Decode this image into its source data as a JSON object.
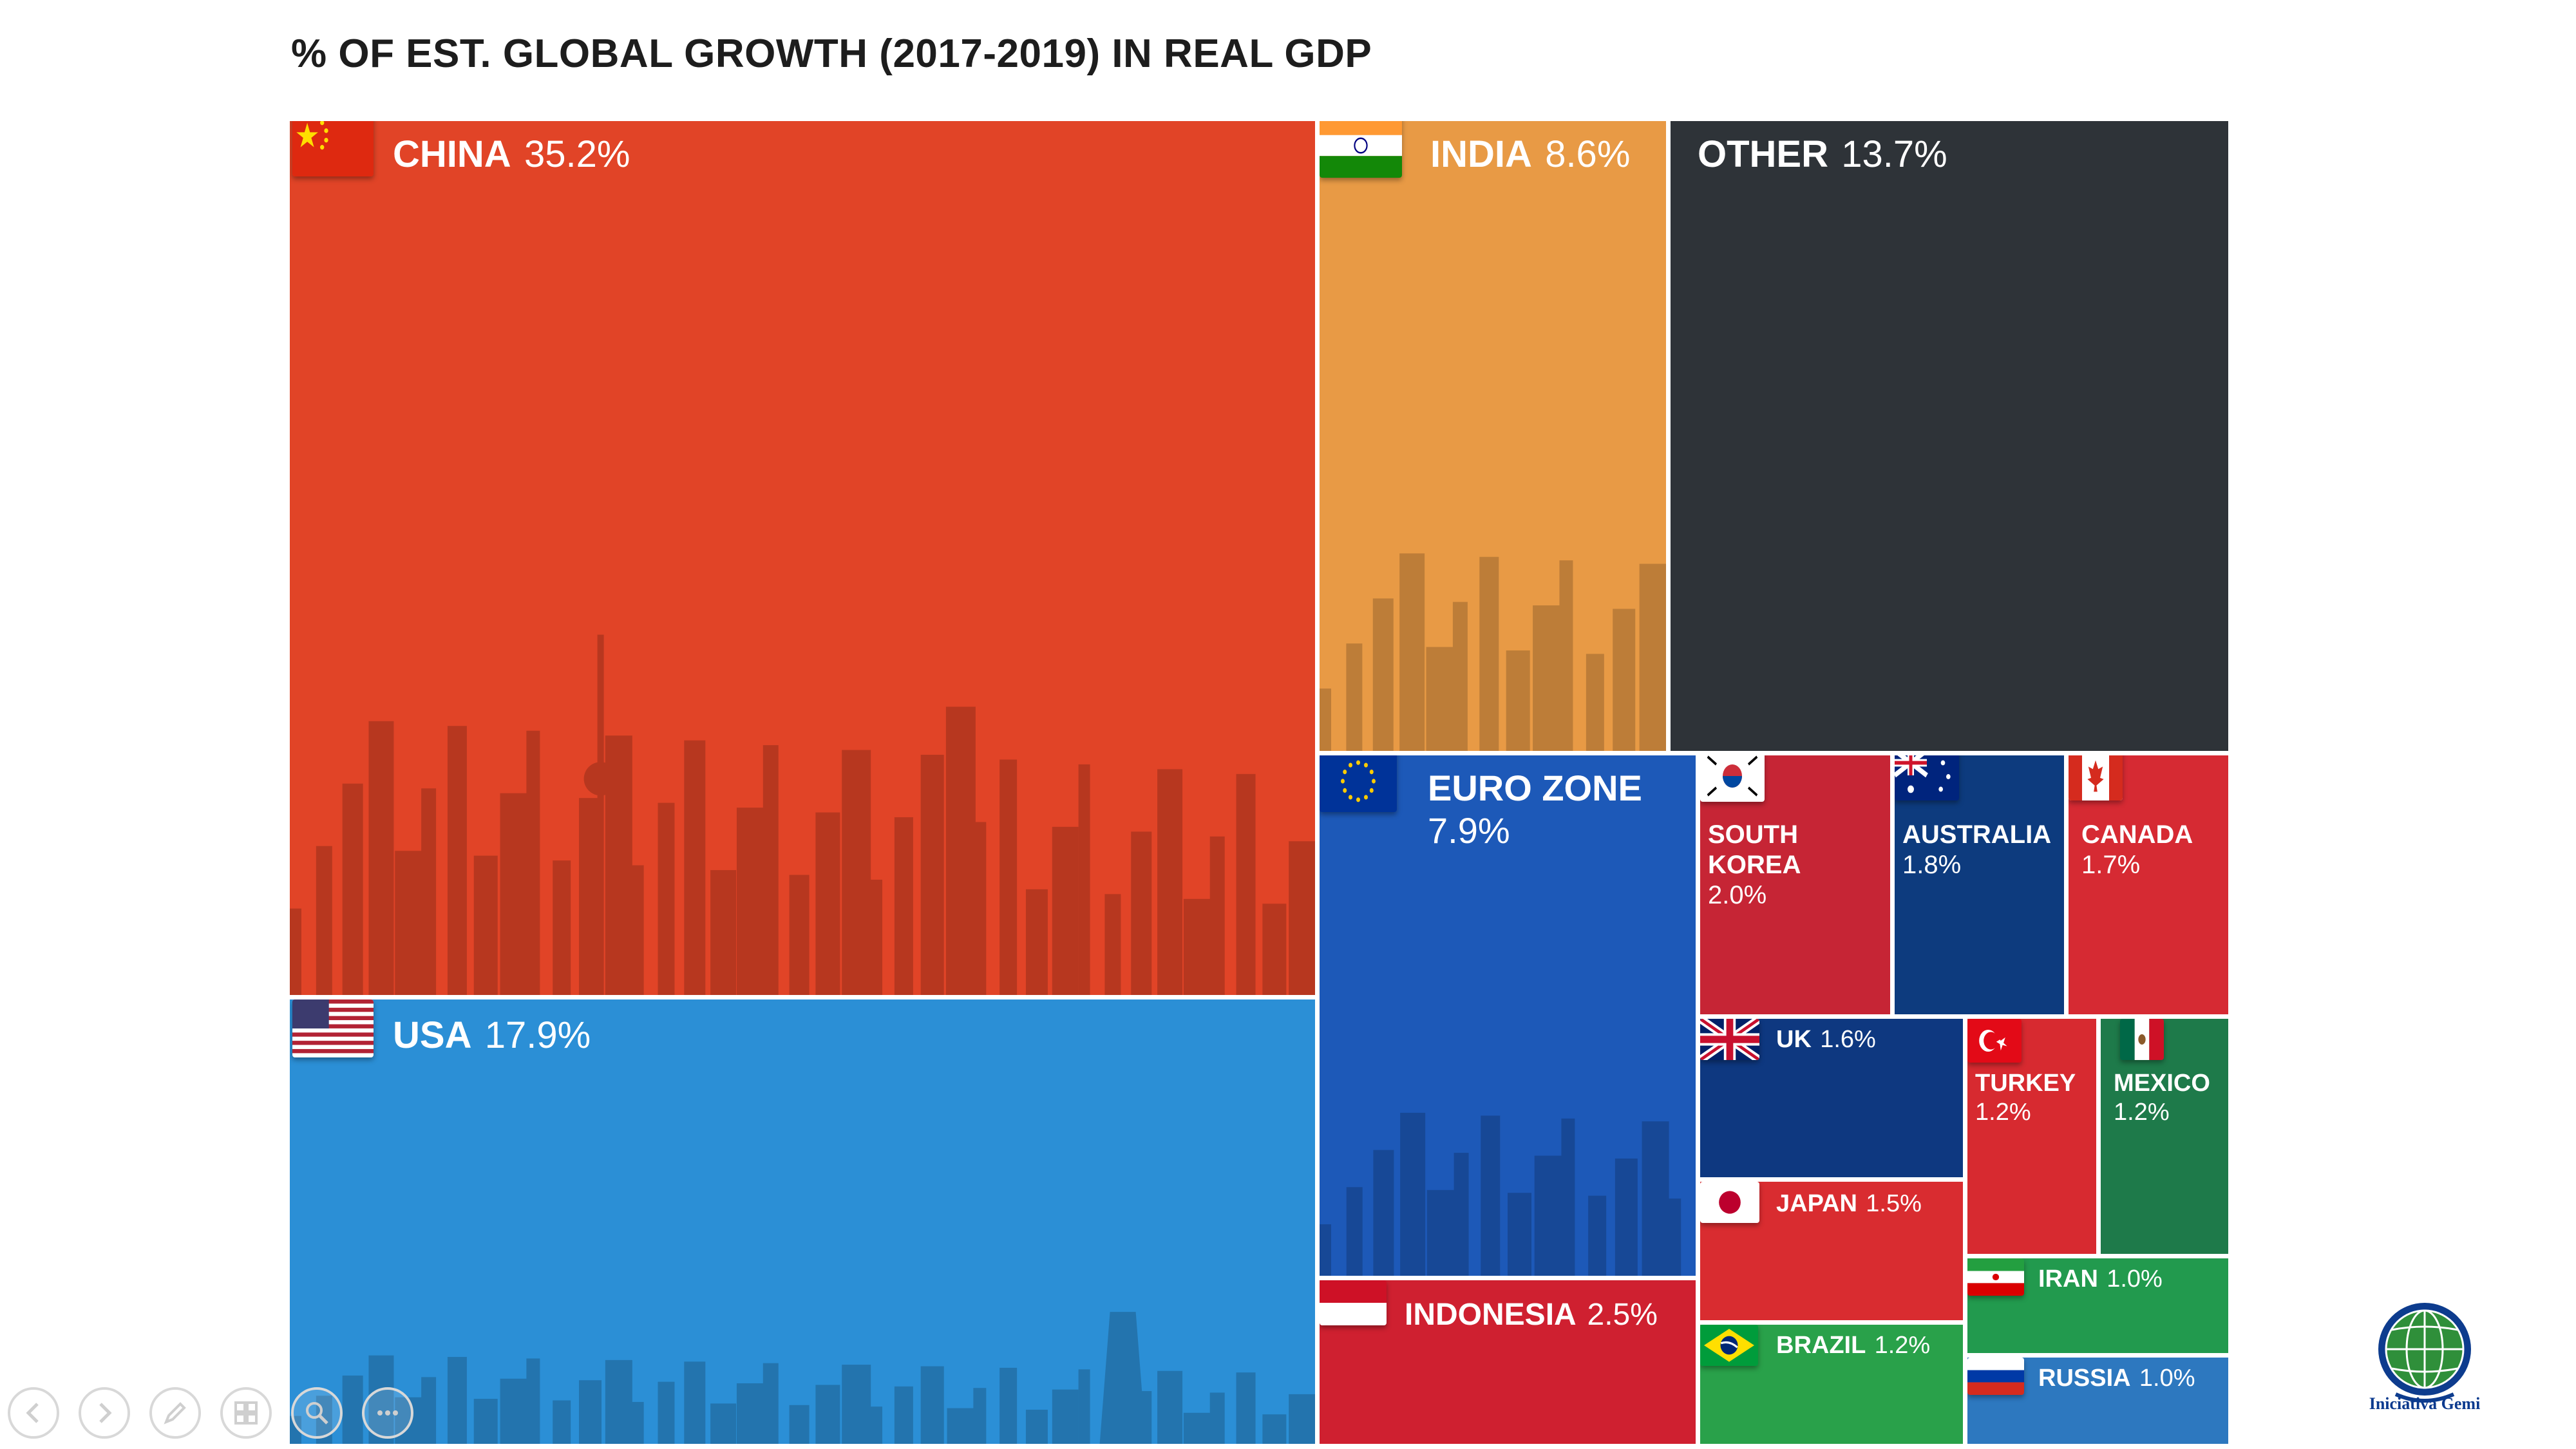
{
  "title": "% OF EST. GLOBAL GROWTH (2017-2019) IN REAL GDP",
  "chart_data": {
    "type": "treemap",
    "title": "% OF EST. GLOBAL GROWTH (2017-2019) IN REAL GDP",
    "unit": "%",
    "labels": [
      "CHINA",
      "USA",
      "OTHER",
      "INDIA",
      "EURO ZONE",
      "INDONESIA",
      "SOUTH KOREA",
      "AUSTRALIA",
      "CANADA",
      "UK",
      "JAPAN",
      "BRAZIL",
      "TURKEY",
      "MEXICO",
      "IRAN",
      "RUSSIA"
    ],
    "values": [
      35.2,
      17.9,
      13.7,
      8.6,
      7.9,
      2.5,
      2.0,
      1.8,
      1.7,
      1.6,
      1.5,
      1.2,
      1.2,
      1.2,
      1.0,
      1.0
    ],
    "value_labels": [
      "35.2%",
      "17.9%",
      "13.7%",
      "8.6%",
      "7.9%",
      "2.5%",
      "2.0%",
      "1.8%",
      "1.7%",
      "1.6%",
      "1.5%",
      "1.2%",
      "1.2%",
      "1.2%",
      "1.0%",
      "1.0%"
    ],
    "colors": [
      "#e14427",
      "#2b8fd6",
      "#2e3338",
      "#e89a45",
      "#1d59b8",
      "#cf2030",
      "#c62535",
      "#0d3b7e",
      "#d62a33",
      "#0e3880",
      "#d92c30",
      "#29a14a",
      "#d72a30",
      "#1e7a4a",
      "#229a4e",
      "#2d78bf"
    ]
  },
  "tiles": [
    {
      "key": "china",
      "name": "CHINA",
      "value": "35.2%",
      "color": "#e14427",
      "flag": "china-flag-icon"
    },
    {
      "key": "usa",
      "name": "USA",
      "value": "17.9%",
      "color": "#2b8fd6",
      "flag": "usa-flag-icon"
    },
    {
      "key": "india",
      "name": "INDIA",
      "value": "8.6%",
      "color": "#e89a45",
      "flag": "india-flag-icon"
    },
    {
      "key": "other",
      "name": "OTHER",
      "value": "13.7%",
      "color": "#2e3338",
      "flag": ""
    },
    {
      "key": "euro",
      "name": "EURO ZONE",
      "value": "7.9%",
      "color": "#1d59b8",
      "flag": "eu-flag-icon"
    },
    {
      "key": "indonesia",
      "name": "INDONESIA",
      "value": "2.5%",
      "color": "#cf2030",
      "flag": "indonesia-flag-icon"
    },
    {
      "key": "skorea",
      "name_lines": [
        "SOUTH",
        "KOREA"
      ],
      "value": "2.0%",
      "color": "#c62535",
      "flag": "south-korea-flag-icon"
    },
    {
      "key": "australia",
      "name": "AUSTRALIA",
      "value": "1.8%",
      "color": "#0d3b7e",
      "flag": "australia-flag-icon"
    },
    {
      "key": "canada",
      "name": "CANADA",
      "value": "1.7%",
      "color": "#d62a33",
      "flag": "canada-flag-icon"
    },
    {
      "key": "uk",
      "name": "UK",
      "value": "1.6%",
      "color": "#0e3880",
      "flag": "uk-flag-icon"
    },
    {
      "key": "turkey",
      "name": "TURKEY",
      "value": "1.2%",
      "color": "#d72a30",
      "flag": "turkey-flag-icon"
    },
    {
      "key": "mexico",
      "name": "MEXICO",
      "value": "1.2%",
      "color": "#1e7a4a",
      "flag": "mexico-flag-icon"
    },
    {
      "key": "japan",
      "name": "JAPAN",
      "value": "1.5%",
      "color": "#d92c30",
      "flag": "japan-flag-icon"
    },
    {
      "key": "iran",
      "name": "IRAN",
      "value": "1.0%",
      "color": "#229a4e",
      "flag": "iran-flag-icon"
    },
    {
      "key": "brazil",
      "name": "BRAZIL",
      "value": "1.2%",
      "color": "#29a14a",
      "flag": "brazil-flag-icon"
    },
    {
      "key": "russia",
      "name": "RUSSIA",
      "value": "1.0%",
      "color": "#2d78bf",
      "flag": "russia-flag-icon"
    }
  ],
  "controls": [
    {
      "name": "previous-slide-button",
      "icon": "chevron-left-icon"
    },
    {
      "name": "next-slide-button",
      "icon": "chevron-right-icon"
    },
    {
      "name": "pen-tool-button",
      "icon": "pen-icon"
    },
    {
      "name": "slides-grid-button",
      "icon": "grid-icon"
    },
    {
      "name": "zoom-button",
      "icon": "magnifier-icon"
    },
    {
      "name": "more-options-button",
      "icon": "ellipsis-icon"
    }
  ],
  "logo": {
    "text": "Iniciativa Gemi",
    "icon": "globe-logo-icon"
  }
}
